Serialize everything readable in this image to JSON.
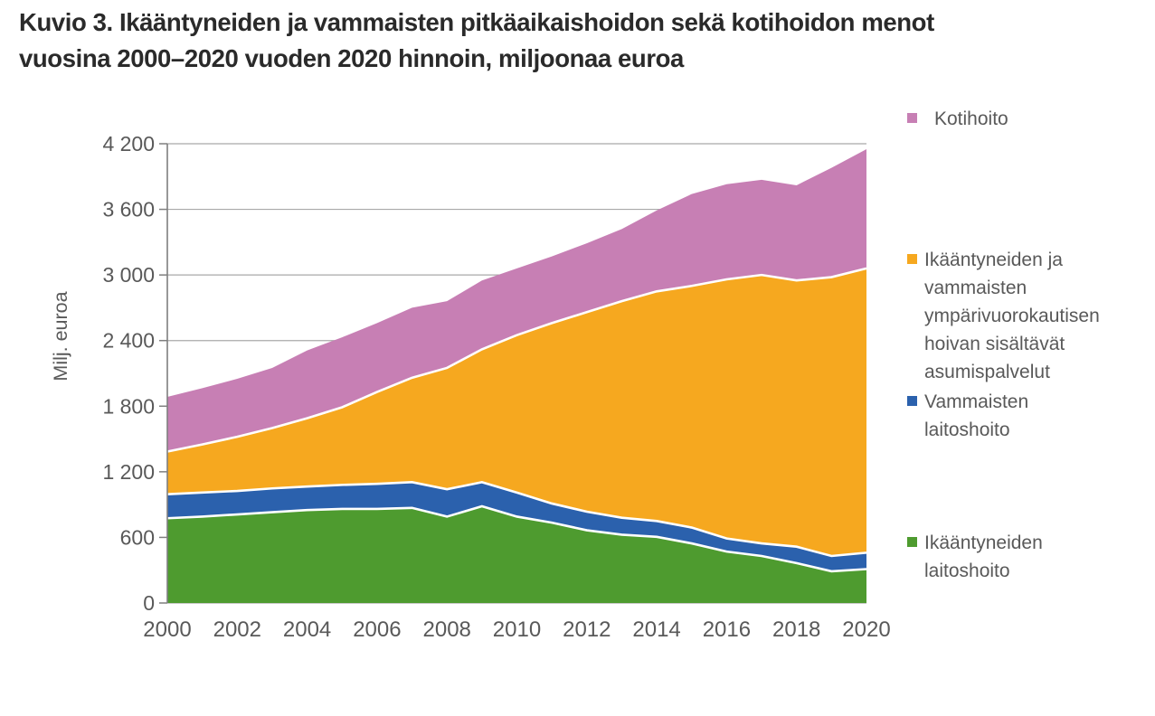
{
  "figure": {
    "title_lines": [
      "Kuvio 3. Ikääntyneiden ja vammaisten pitkäaikaishoidon sekä kotihoidon menot",
      "vuosina 2000–2020 vuoden 2020 hinnoin, miljoonaa euroa"
    ]
  },
  "y_axis": {
    "title": "Milj. euroa",
    "tick_labels": [
      "4 200",
      "3 600",
      "3 000",
      "2 400",
      "1 800",
      "1 200",
      "600",
      "0"
    ],
    "tick_values": [
      4200,
      3600,
      3000,
      2400,
      1800,
      1200,
      600,
      0
    ]
  },
  "x_axis": {
    "tick_labels": [
      "2000",
      "2002",
      "2004",
      "2006",
      "2008",
      "2010",
      "2012",
      "2014",
      "2016",
      "2018",
      "2020"
    ],
    "tick_values": [
      2000,
      2002,
      2004,
      2006,
      2008,
      2010,
      2012,
      2014,
      2016,
      2018,
      2020
    ]
  },
  "legend": {
    "items": [
      {
        "key": "kotihoito",
        "label": "Kotihoito",
        "color": "#c77fb4"
      },
      {
        "key": "asumispalvelut",
        "label": "Ikääntyneiden ja vammaisten ympärivuorokautisen hoivan sisältävät asumispalvelut",
        "color": "#f6a81f"
      },
      {
        "key": "vammaisten-laitoshoito",
        "label": "Vammaisten laitoshoito",
        "color": "#2b61ad"
      },
      {
        "key": "ikaantyneiden-laitoshoito",
        "label": "Ikääntyneiden laitoshoito",
        "color": "#4e9b2f"
      }
    ]
  },
  "chart_data": {
    "type": "area",
    "stacked": true,
    "title": "Kuvio 3. Ikääntyneiden ja vammaisten pitkäaikaishoidon sekä kotihoidon menot vuosina 2000–2020 vuoden 2020 hinnoin, miljoonaa euroa",
    "xlabel": "",
    "ylabel": "Milj. euroa",
    "ylim": [
      0,
      4200
    ],
    "xlim": [
      2000,
      2020
    ],
    "grid": true,
    "legend_position": "right",
    "units": "miljoonaa euroa, vuoden 2020 hinnoin",
    "x": [
      2000,
      2001,
      2002,
      2003,
      2004,
      2005,
      2006,
      2007,
      2008,
      2009,
      2010,
      2011,
      2012,
      2013,
      2014,
      2015,
      2016,
      2017,
      2018,
      2019,
      2020
    ],
    "series": [
      {
        "key": "ikaantyneiden-laitoshoito",
        "name": "Ikääntyneiden laitoshoito",
        "color": "#4e9b2f",
        "values": [
          775,
          790,
          810,
          830,
          850,
          860,
          860,
          870,
          790,
          885,
          790,
          735,
          665,
          625,
          605,
          545,
          470,
          430,
          365,
          290,
          310
        ]
      },
      {
        "key": "vammaisten-laitoshoito",
        "name": "Vammaisten laitoshoito",
        "color": "#2b61ad",
        "values": [
          220,
          220,
          215,
          218,
          215,
          220,
          230,
          235,
          250,
          220,
          220,
          175,
          170,
          155,
          145,
          145,
          120,
          115,
          150,
          140,
          150
        ]
      },
      {
        "key": "asumispalvelut",
        "name": "Ikääntyneiden ja vammaisten ympärivuorokautisen hoivan sisältävät asumispalvelut",
        "color": "#f6a81f",
        "values": [
          390,
          440,
          495,
          552,
          625,
          710,
          840,
          955,
          1110,
          1215,
          1440,
          1650,
          1825,
          1980,
          2100,
          2210,
          2370,
          2455,
          2435,
          2550,
          2600
        ]
      },
      {
        "key": "kotihoito",
        "name": "Kotihoito",
        "color": "#c77fb4",
        "values": [
          500,
          515,
          530,
          550,
          620,
          640,
          630,
          640,
          610,
          630,
          610,
          610,
          630,
          660,
          740,
          840,
          870,
          870,
          870,
          1000,
          1090
        ]
      }
    ],
    "stack_totals": [
      1885,
      1965,
      2050,
      2150,
      2310,
      2430,
      2560,
      2700,
      2760,
      2950,
      3060,
      3170,
      3290,
      3420,
      3590,
      3740,
      3830,
      3870,
      3820,
      3980,
      4150
    ]
  }
}
